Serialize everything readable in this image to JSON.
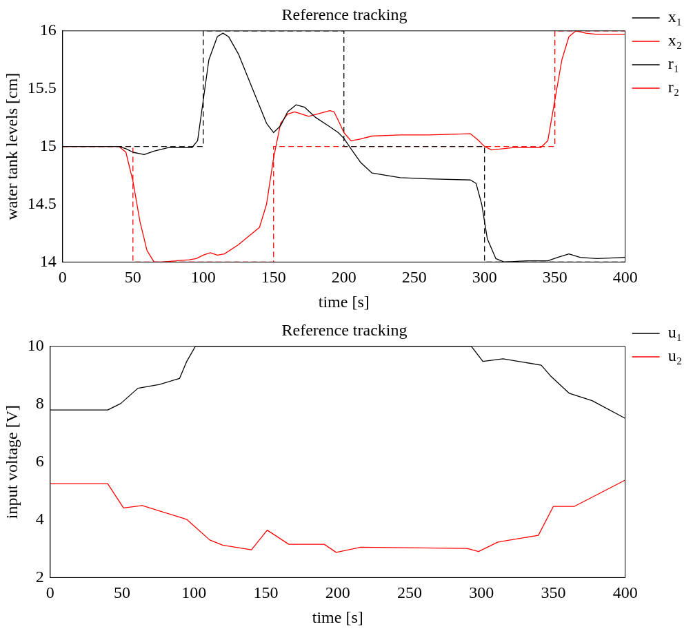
{
  "chart_data": [
    {
      "type": "line",
      "title": "Reference tracking",
      "xlabel": "time [s]",
      "ylabel": "water tank levels [cm]",
      "xlim": [
        0,
        400
      ],
      "xticks": [
        0,
        50,
        100,
        150,
        200,
        250,
        300,
        350,
        400
      ],
      "ylim": [
        14,
        16
      ],
      "yticks": [
        14,
        14.5,
        15,
        15.5,
        16
      ],
      "grid": false,
      "legend": "right",
      "marker": "none",
      "series": [
        {
          "name": "x₁",
          "color": "#000000",
          "line_style": "solid",
          "x": [
            0,
            40,
            45,
            50,
            58,
            65,
            75,
            92,
            96,
            100,
            104,
            110,
            114,
            118,
            125,
            135,
            145,
            150,
            155,
            160,
            166,
            172,
            180,
            190,
            196,
            200,
            205,
            212,
            220,
            240,
            260,
            290,
            294,
            298,
            302,
            308,
            314,
            330,
            345,
            352,
            360,
            368,
            380,
            400
          ],
          "values": [
            15,
            15,
            14.98,
            14.95,
            14.93,
            14.96,
            14.99,
            14.99,
            15.05,
            15.4,
            15.75,
            15.95,
            15.98,
            15.95,
            15.8,
            15.5,
            15.2,
            15.12,
            15.18,
            15.3,
            15.36,
            15.34,
            15.25,
            15.17,
            15.12,
            15.07,
            14.98,
            14.86,
            14.77,
            14.73,
            14.72,
            14.71,
            14.68,
            14.5,
            14.2,
            14.03,
            14,
            14.01,
            14.01,
            14.04,
            14.07,
            14.04,
            14.03,
            14.04
          ]
        },
        {
          "name": "x₂",
          "color": "#ff0000",
          "line_style": "solid",
          "x": [
            0,
            40,
            45,
            50,
            55,
            60,
            65,
            70,
            90,
            95,
            100,
            105,
            110,
            115,
            125,
            140,
            145,
            150,
            155,
            160,
            165,
            175,
            190,
            193,
            197,
            200,
            205,
            210,
            220,
            240,
            260,
            290,
            295,
            300,
            305,
            320,
            340,
            345,
            350,
            355,
            360,
            365,
            372,
            380,
            400
          ],
          "values": [
            15,
            15,
            14.95,
            14.7,
            14.35,
            14.1,
            14,
            14,
            14.02,
            14.03,
            14.06,
            14.08,
            14.06,
            14.07,
            14.15,
            14.3,
            14.5,
            14.9,
            15.2,
            15.28,
            15.3,
            15.26,
            15.31,
            15.3,
            15.2,
            15.12,
            15.05,
            15.06,
            15.09,
            15.1,
            15.1,
            15.11,
            15.06,
            15,
            14.97,
            14.99,
            14.99,
            15.05,
            15.4,
            15.75,
            15.95,
            16,
            15.98,
            15.97,
            15.97
          ]
        },
        {
          "name": "r₁",
          "color": "#000000",
          "type": "step",
          "line_style": "dashed",
          "x": [
            0,
            100,
            200,
            300,
            400
          ],
          "values": [
            15,
            16,
            15,
            14,
            14
          ]
        },
        {
          "name": "r₂",
          "color": "#ff0000",
          "type": "step",
          "line_style": "dashed",
          "x": [
            0,
            50,
            150,
            350,
            400
          ],
          "values": [
            15,
            14,
            15,
            16,
            16
          ]
        }
      ]
    },
    {
      "type": "line",
      "title": "Reference tracking",
      "xlabel": "time [s]",
      "ylabel": "input voltage [V]",
      "xlim": [
        0,
        400
      ],
      "xticks": [
        0,
        50,
        100,
        150,
        200,
        250,
        300,
        350,
        400
      ],
      "ylim": [
        2,
        10
      ],
      "yticks": [
        2,
        4,
        6,
        8,
        10
      ],
      "grid": false,
      "legend": "right",
      "marker": "none",
      "series": [
        {
          "name": "u₁",
          "color": "#000000",
          "line_style": "solid",
          "x": [
            0,
            40,
            49,
            61,
            76,
            90,
            95,
            101,
            200,
            293,
            301,
            315,
            341.6,
            348.6,
            361,
            377,
            400
          ],
          "values": [
            7.8,
            7.8,
            8.02,
            8.55,
            8.68,
            8.89,
            9.48,
            10,
            10,
            10,
            9.48,
            9.57,
            9.35,
            8.95,
            8.38,
            8.12,
            7.51
          ]
        },
        {
          "name": "u₂",
          "color": "#ff0000",
          "line_style": "solid",
          "x": [
            0,
            40,
            51,
            64,
            90,
            95,
            111,
            120,
            140,
            151,
            166,
            190.6,
            199,
            216,
            290,
            298,
            311.5,
            339.6,
            350,
            364.5,
            400
          ],
          "values": [
            5.25,
            5.25,
            4.41,
            4.49,
            4.09,
            4.01,
            3.3,
            3.12,
            2.96,
            3.64,
            3.15,
            3.15,
            2.87,
            3.05,
            3.01,
            2.9,
            3.23,
            3.46,
            4.46,
            4.46,
            5.37
          ]
        }
      ]
    }
  ]
}
